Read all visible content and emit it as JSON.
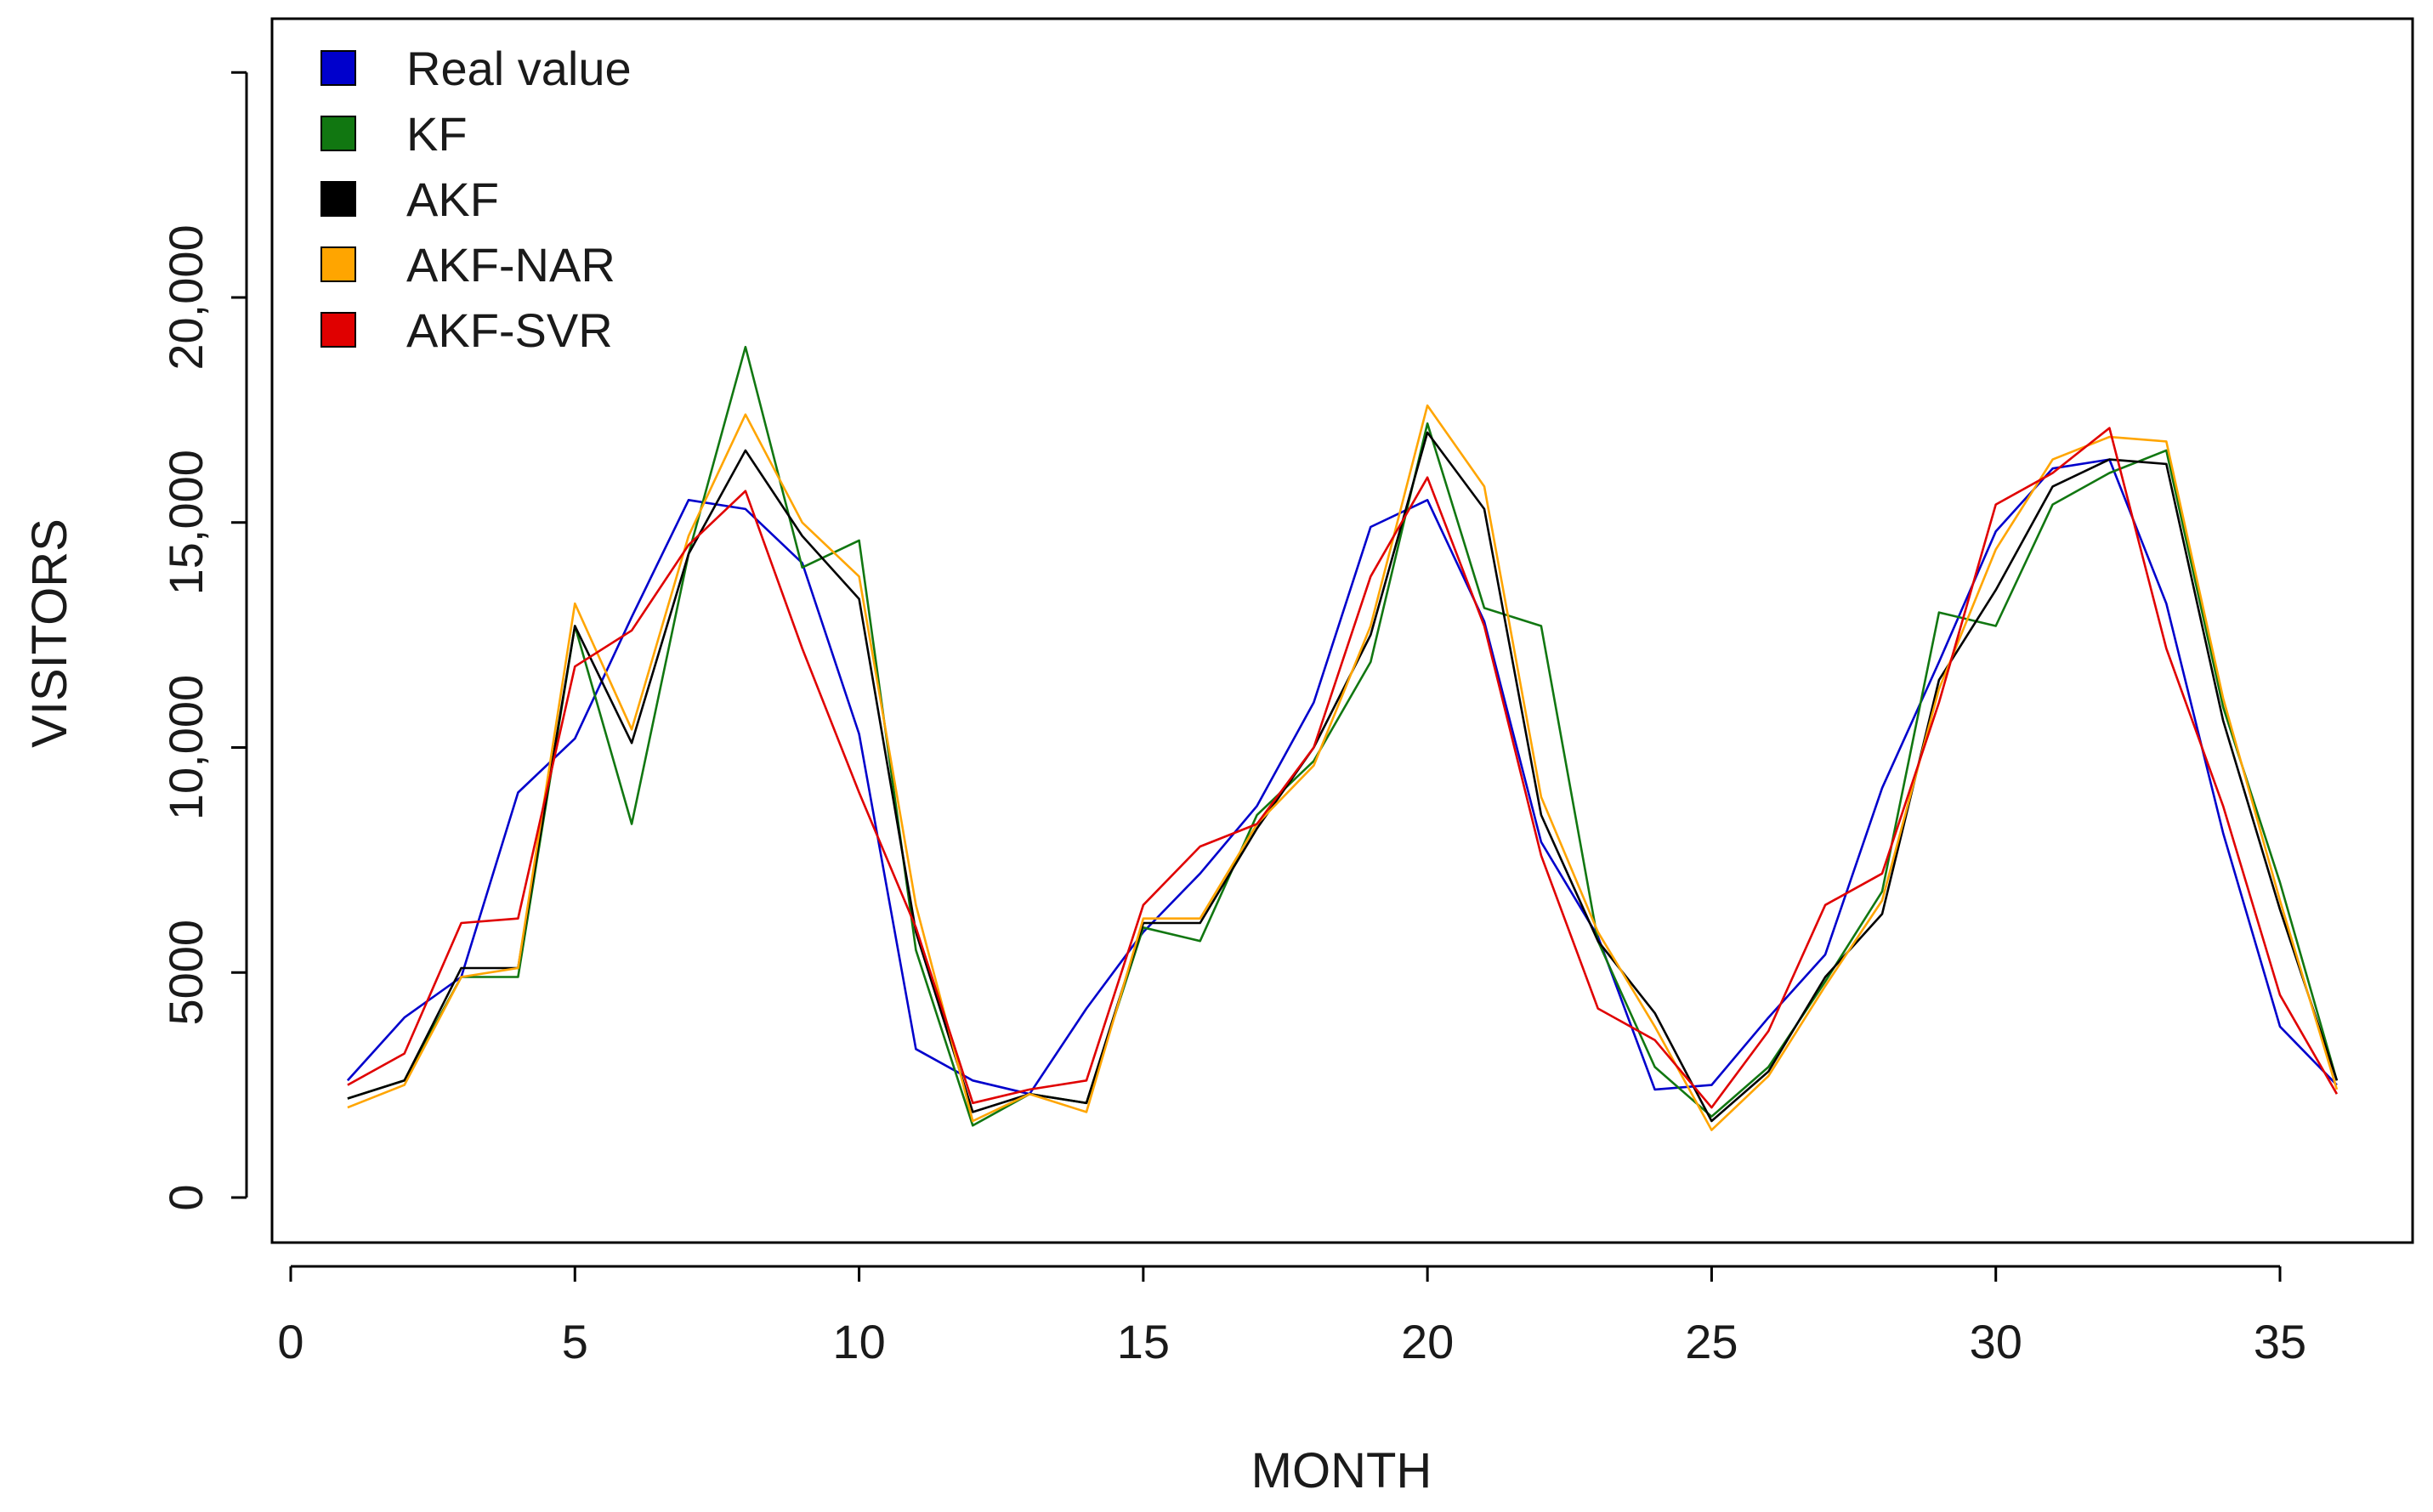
{
  "chart_data": {
    "type": "line",
    "title": "",
    "xlabel": "MONTH",
    "ylabel": "VISITORS",
    "xlim": [
      0,
      36.8
    ],
    "ylim": [
      0,
      25000
    ],
    "x_ticks": [
      0,
      5,
      10,
      15,
      20,
      25,
      30,
      35
    ],
    "x_tick_labels": [
      "0",
      "5",
      "10",
      "15",
      "20",
      "25",
      "30",
      "35"
    ],
    "y_ticks": [
      0,
      5000,
      10000,
      15000,
      20000,
      25000
    ],
    "y_tick_labels": [
      "0",
      "5000",
      "10,000",
      "15,000",
      "20,000",
      ""
    ],
    "grid": false,
    "legend_position": "top-left",
    "x": [
      1,
      2,
      3,
      4,
      5,
      6,
      7,
      8,
      9,
      10,
      11,
      12,
      13,
      14,
      15,
      16,
      17,
      18,
      19,
      20,
      21,
      22,
      23,
      24,
      25,
      26,
      27,
      28,
      29,
      30,
      31,
      32,
      33,
      34,
      35,
      36
    ],
    "series": [
      {
        "name": "Real value",
        "color": "#0000cc",
        "values": [
          2600,
          4000,
          4900,
          9000,
          10200,
          12900,
          15500,
          15300,
          14100,
          10300,
          3300,
          2600,
          2300,
          4200,
          5900,
          7200,
          8700,
          11000,
          14900,
          15500,
          12800,
          7900,
          5800,
          2400,
          2500,
          4000,
          5400,
          9100,
          11900,
          14800,
          16200,
          16400,
          13200,
          8100,
          3800,
          2500
        ]
      },
      {
        "name": "KF",
        "color": "#117711",
        "values": [
          2200,
          2600,
          4900,
          4900,
          12700,
          8300,
          14300,
          18900,
          14000,
          14600,
          5500,
          1600,
          2300,
          2100,
          6000,
          5700,
          8500,
          9700,
          11900,
          17200,
          13100,
          12700,
          5700,
          2900,
          1800,
          2900,
          4800,
          6800,
          13000,
          12700,
          15400,
          16100,
          16600,
          10900,
          7000,
          2600
        ]
      },
      {
        "name": "AKF",
        "color": "#000000",
        "values": [
          2200,
          2600,
          5100,
          5100,
          12700,
          10100,
          14300,
          16600,
          14700,
          13300,
          5900,
          1900,
          2300,
          2100,
          6100,
          6100,
          8200,
          10000,
          12500,
          17000,
          15300,
          8500,
          5700,
          4100,
          1700,
          2800,
          4900,
          6300,
          11500,
          13500,
          15800,
          16400,
          16300,
          10600,
          6400,
          2600
        ]
      },
      {
        "name": "AKF-NAR",
        "color": "#ffa500",
        "values": [
          2000,
          2500,
          4900,
          5100,
          13200,
          10400,
          14700,
          17400,
          15000,
          13800,
          6500,
          1700,
          2300,
          1900,
          6200,
          6200,
          8300,
          9600,
          12700,
          17600,
          15800,
          8900,
          5900,
          3800,
          1500,
          2700,
          4700,
          6600,
          11300,
          14400,
          16400,
          16900,
          16800,
          11100,
          6600,
          2400
        ]
      },
      {
        "name": "AKF-SVR",
        "color": "#e00000",
        "values": [
          2500,
          3200,
          6100,
          6200,
          11800,
          12600,
          14500,
          15700,
          12200,
          9000,
          6000,
          2100,
          2400,
          2600,
          6500,
          7800,
          8300,
          10000,
          13800,
          16000,
          12700,
          7600,
          4200,
          3500,
          2000,
          3700,
          6500,
          7200,
          11000,
          15400,
          16100,
          17100,
          12200,
          8700,
          4500,
          2300
        ]
      }
    ]
  }
}
